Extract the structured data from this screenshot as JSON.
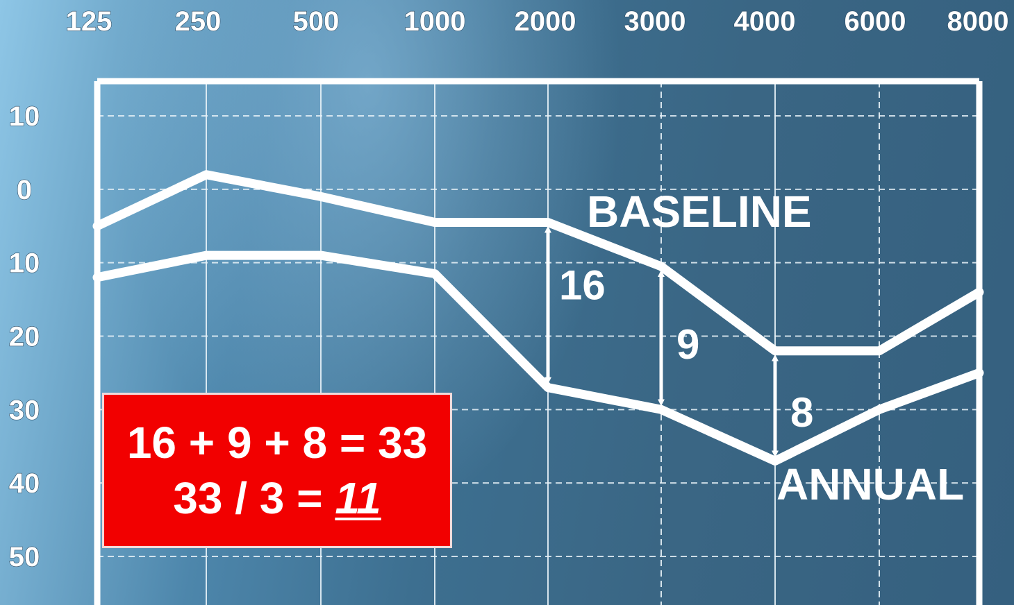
{
  "chart_data": {
    "type": "line",
    "x_categories": [
      "125",
      "250",
      "500",
      "1000",
      "2000",
      "3000",
      "4000",
      "6000",
      "8000"
    ],
    "y_tick_labels": [
      "10",
      "0",
      "10",
      "20",
      "30",
      "40",
      "50"
    ],
    "y_ticks": [
      -10,
      0,
      10,
      20,
      30,
      40,
      50
    ],
    "ylim": [
      -15,
      58
    ],
    "y_axis_inverted": true,
    "grid": true,
    "series": [
      {
        "name": "BASELINE",
        "values": [
          5,
          -2,
          1,
          4.5,
          4.5,
          10.5,
          22,
          22,
          14
        ]
      },
      {
        "name": "ANNUAL",
        "values": [
          12,
          9,
          9,
          11.5,
          27,
          30,
          37,
          30,
          25
        ]
      }
    ],
    "annotations": [
      {
        "label": "16",
        "at": "2000"
      },
      {
        "label": "9",
        "at": "3000"
      },
      {
        "label": "8",
        "at": "4000"
      }
    ]
  },
  "calculation": {
    "line1": "16 + 9 + 8 = 33",
    "line2_prefix": "33 / 3 = ",
    "line2_result": "11"
  },
  "colors": {
    "line": "#ffffff",
    "grid": "#e8f2f8",
    "box": "#f20000"
  }
}
